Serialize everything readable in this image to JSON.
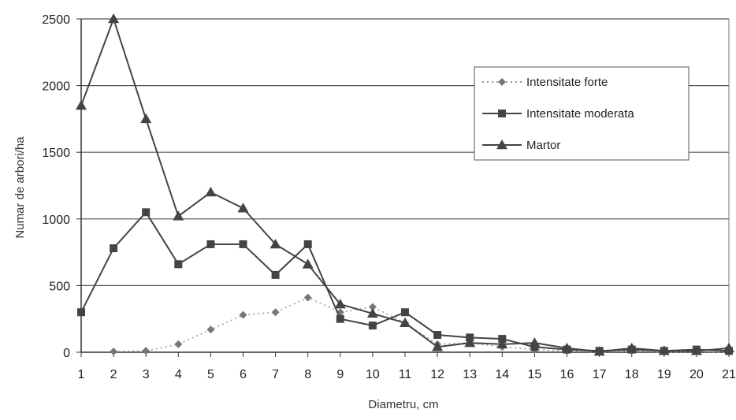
{
  "chart_data": {
    "type": "line",
    "xlabel": "Diametru, cm",
    "ylabel": "Numar de arbori/ha",
    "x": [
      1,
      2,
      3,
      4,
      5,
      6,
      7,
      8,
      9,
      10,
      11,
      12,
      13,
      14,
      15,
      16,
      17,
      18,
      19,
      20,
      21
    ],
    "x_ticks": [
      "1",
      "2",
      "3",
      "4",
      "5",
      "6",
      "7",
      "8",
      "9",
      "10",
      "11",
      "12",
      "13",
      "14",
      "15",
      "16",
      "17",
      "18",
      "19",
      "20",
      "21"
    ],
    "y_ticks": [
      "0",
      "500",
      "1000",
      "1500",
      "2000",
      "2500"
    ],
    "ylim": [
      0,
      2500
    ],
    "grid": "horizontal",
    "legend_position": "top-right",
    "series": [
      {
        "name": "Intensitate forte",
        "marker": "diamond",
        "line": "dotted",
        "color": "#999999",
        "x": [
          2,
          3,
          4,
          5,
          6,
          7,
          8,
          9,
          10,
          11,
          12,
          13,
          14,
          15,
          16,
          17,
          18,
          19,
          20,
          21
        ],
        "values": [
          5,
          10,
          60,
          170,
          280,
          300,
          410,
          300,
          340,
          220,
          60,
          70,
          40,
          20,
          10,
          0,
          10,
          0,
          5,
          0
        ]
      },
      {
        "name": "Intensitate moderata",
        "marker": "square",
        "line": "solid",
        "color": "#444444",
        "x": [
          1,
          2,
          3,
          4,
          5,
          6,
          7,
          8,
          9,
          10,
          11,
          12,
          13,
          14,
          15,
          16,
          17,
          18,
          19,
          20,
          21
        ],
        "values": [
          300,
          780,
          1050,
          660,
          810,
          810,
          580,
          810,
          250,
          200,
          300,
          130,
          110,
          100,
          40,
          20,
          10,
          20,
          10,
          20,
          10
        ]
      },
      {
        "name": "Martor",
        "marker": "triangle",
        "line": "solid",
        "color": "#444444",
        "x": [
          1,
          2,
          3,
          4,
          5,
          6,
          7,
          8,
          9,
          10,
          11,
          12,
          13,
          14,
          15,
          16,
          17,
          18,
          19,
          20,
          21
        ],
        "values": [
          1850,
          2500,
          1750,
          1020,
          1200,
          1080,
          810,
          660,
          360,
          290,
          220,
          40,
          70,
          60,
          70,
          30,
          5,
          30,
          10,
          10,
          30
        ]
      }
    ]
  }
}
